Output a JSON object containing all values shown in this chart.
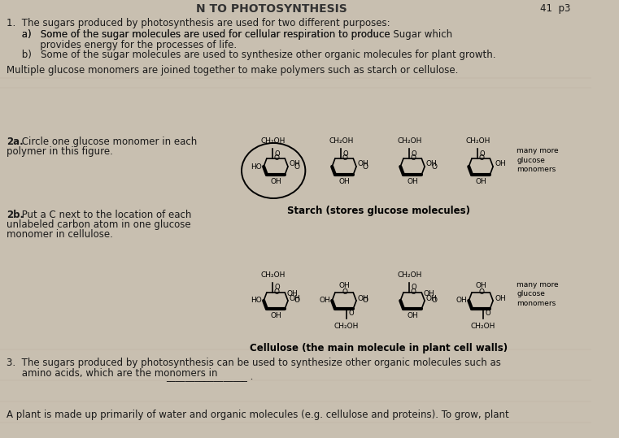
{
  "bg_color": "#c8bfb0",
  "text_color": "#1a1a1a",
  "fig_width": 7.61,
  "fig_height": 5.39,
  "dpi": 100,
  "title": "N TO PHOTOSYNTHESIS",
  "page_num": "41  p3",
  "line1": "1.  The sugars produced by photosynthesis are used for two different purposes:",
  "line_a1": "     a)   Some of the sugar molecules are used for cellular respiration to produce ",
  "line_a_underline": "Sugar",
  "line_a2": " which",
  "line_a3": "           provides energy for the processes of life.",
  "line_b": "     b)   Some of the sugar molecules are used to synthesize other organic molecules for plant growth.",
  "line_multiple": "Multiple glucose monomers are joined together to make polymers such as starch or cellulose.",
  "label_2a_1": "2a.",
  "label_2a_2": " Circle one glucose monomer in each",
  "label_2a_3": "polymer in this figure.",
  "label_2b_1": "2b.",
  "label_2b_2": " Put a C next to the location of each",
  "label_2b_3": "unlabeled carbon atom in one glucose",
  "label_2b_4": "monomer in cellulose.",
  "starch_label": "Starch (stores glucose molecules)",
  "cellulose_label": "Cellulose (the main molecule in plant cell walls)",
  "many_more": "many more\nglucose\nmonomers",
  "line3_1": "3.  The sugars produced by photosynthesis can be used to synthesize other organic molecules such as",
  "line3_2": "     amino acids, which are the monomers in",
  "line3_line": "_________________ .",
  "line_bottom": "A plant is made up primarily of water and organic molecules (e.g. cellulose and proteins). To grow, plant"
}
